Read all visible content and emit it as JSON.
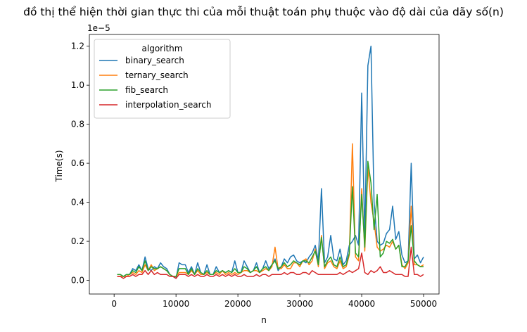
{
  "chart_data": {
    "type": "line",
    "title": "đồ thị thể hiện thời gian thực thi của mỗi thuật toán phụ thuộc vào độ dài của dãy số(n)",
    "xlabel": "n",
    "ylabel": "Time(s)",
    "y_offset_label": "1e−5",
    "y_unit_scale": 1e-05,
    "xlim": [
      -4000,
      52500
    ],
    "ylim": [
      -0.07,
      1.26
    ],
    "x_ticks": [
      0,
      10000,
      20000,
      30000,
      40000,
      50000
    ],
    "x_tick_labels": [
      "0",
      "10000",
      "20000",
      "30000",
      "40000",
      "50000"
    ],
    "y_ticks": [
      0.0,
      0.2,
      0.4,
      0.6,
      0.8,
      1.0,
      1.2
    ],
    "y_tick_labels": [
      "0.0",
      "0.2",
      "0.4",
      "0.6",
      "0.8",
      "1.0",
      "1.2"
    ],
    "grid": false,
    "legend": {
      "title": "algorithm",
      "placement": "top-left"
    },
    "x": [
      500,
      1000,
      1500,
      2000,
      2500,
      3000,
      3500,
      4000,
      4500,
      5000,
      5500,
      6000,
      6500,
      7000,
      7500,
      8000,
      8500,
      9000,
      9500,
      10000,
      10500,
      11000,
      11500,
      12000,
      12500,
      13000,
      13500,
      14000,
      14500,
      15000,
      15500,
      16000,
      16500,
      17000,
      17500,
      18000,
      18500,
      19000,
      19500,
      20000,
      20500,
      21000,
      21500,
      22000,
      22500,
      23000,
      23500,
      24000,
      24500,
      25000,
      25500,
      26000,
      26500,
      27000,
      27500,
      28000,
      28500,
      29000,
      29500,
      30000,
      30500,
      31000,
      31500,
      32000,
      32500,
      33000,
      33500,
      34000,
      34500,
      35000,
      35500,
      36000,
      36500,
      37000,
      37500,
      38000,
      38500,
      39000,
      39500,
      40000,
      40500,
      41000,
      41500,
      42000,
      42500,
      43000,
      43500,
      44000,
      44500,
      45000,
      45500,
      46000,
      46500,
      47000,
      47500,
      48000,
      48500,
      49000,
      49500,
      50000
    ],
    "series": [
      {
        "name": "binary_search",
        "color": "#1f77b4",
        "values": [
          0.03,
          0.03,
          0.02,
          0.03,
          0.03,
          0.06,
          0.05,
          0.08,
          0.05,
          0.12,
          0.06,
          0.05,
          0.07,
          0.06,
          0.09,
          0.07,
          0.06,
          0.03,
          0.02,
          0.01,
          0.09,
          0.08,
          0.08,
          0.04,
          0.07,
          0.03,
          0.09,
          0.04,
          0.03,
          0.08,
          0.03,
          0.03,
          0.07,
          0.04,
          0.05,
          0.04,
          0.05,
          0.04,
          0.1,
          0.04,
          0.04,
          0.1,
          0.07,
          0.04,
          0.05,
          0.09,
          0.04,
          0.06,
          0.1,
          0.06,
          0.08,
          0.11,
          0.05,
          0.07,
          0.11,
          0.09,
          0.12,
          0.13,
          0.1,
          0.09,
          0.1,
          0.09,
          0.12,
          0.14,
          0.18,
          0.1,
          0.47,
          0.09,
          0.12,
          0.23,
          0.11,
          0.1,
          0.16,
          0.08,
          0.1,
          0.18,
          0.2,
          0.23,
          0.18,
          0.96,
          0.22,
          1.1,
          1.2,
          0.4,
          0.2,
          0.18,
          0.19,
          0.24,
          0.26,
          0.38,
          0.21,
          0.25,
          0.13,
          0.09,
          0.1,
          0.6,
          0.11,
          0.13,
          0.09,
          0.12
        ]
      },
      {
        "name": "ternary_search",
        "color": "#ff7f0e",
        "values": [
          0.02,
          0.02,
          0.02,
          0.02,
          0.03,
          0.04,
          0.03,
          0.05,
          0.04,
          0.08,
          0.05,
          0.08,
          0.05,
          0.06,
          0.07,
          0.06,
          0.05,
          0.03,
          0.02,
          0.02,
          0.04,
          0.04,
          0.04,
          0.03,
          0.05,
          0.03,
          0.05,
          0.03,
          0.03,
          0.04,
          0.03,
          0.03,
          0.04,
          0.03,
          0.05,
          0.03,
          0.04,
          0.03,
          0.04,
          0.03,
          0.04,
          0.05,
          0.05,
          0.04,
          0.05,
          0.05,
          0.04,
          0.05,
          0.06,
          0.05,
          0.07,
          0.17,
          0.06,
          0.06,
          0.08,
          0.06,
          0.06,
          0.09,
          0.09,
          0.07,
          0.1,
          0.11,
          0.08,
          0.1,
          0.16,
          0.07,
          0.23,
          0.06,
          0.09,
          0.1,
          0.07,
          0.06,
          0.1,
          0.06,
          0.07,
          0.13,
          0.7,
          0.12,
          0.1,
          0.47,
          0.15,
          0.58,
          0.4,
          0.3,
          0.17,
          0.15,
          0.16,
          0.18,
          0.17,
          0.2,
          0.16,
          0.18,
          0.08,
          0.06,
          0.09,
          0.38,
          0.08,
          0.08,
          0.07,
          0.08
        ]
      },
      {
        "name": "fib_search",
        "color": "#2ca02c",
        "values": [
          0.03,
          0.03,
          0.02,
          0.03,
          0.03,
          0.05,
          0.04,
          0.07,
          0.05,
          0.1,
          0.05,
          0.07,
          0.06,
          0.06,
          0.07,
          0.06,
          0.05,
          0.03,
          0.02,
          0.02,
          0.06,
          0.06,
          0.06,
          0.03,
          0.06,
          0.03,
          0.06,
          0.04,
          0.03,
          0.05,
          0.03,
          0.03,
          0.05,
          0.04,
          0.05,
          0.04,
          0.05,
          0.04,
          0.06,
          0.04,
          0.04,
          0.07,
          0.06,
          0.04,
          0.05,
          0.07,
          0.04,
          0.06,
          0.07,
          0.05,
          0.08,
          0.1,
          0.06,
          0.07,
          0.09,
          0.07,
          0.08,
          0.1,
          0.09,
          0.08,
          0.1,
          0.1,
          0.09,
          0.12,
          0.15,
          0.08,
          0.22,
          0.07,
          0.1,
          0.12,
          0.08,
          0.07,
          0.12,
          0.07,
          0.08,
          0.14,
          0.48,
          0.14,
          0.12,
          0.44,
          0.17,
          0.61,
          0.5,
          0.26,
          0.44,
          0.12,
          0.14,
          0.2,
          0.19,
          0.21,
          0.16,
          0.18,
          0.07,
          0.07,
          0.1,
          0.28,
          0.1,
          0.08,
          0.07,
          0.07
        ]
      },
      {
        "name": "interpolation_search",
        "color": "#d62728",
        "values": [
          0.02,
          0.02,
          0.01,
          0.02,
          0.02,
          0.03,
          0.02,
          0.03,
          0.03,
          0.05,
          0.03,
          0.05,
          0.03,
          0.04,
          0.03,
          0.03,
          0.03,
          0.02,
          0.02,
          0.01,
          0.03,
          0.03,
          0.03,
          0.02,
          0.03,
          0.02,
          0.03,
          0.02,
          0.02,
          0.03,
          0.02,
          0.02,
          0.03,
          0.02,
          0.03,
          0.02,
          0.03,
          0.02,
          0.03,
          0.02,
          0.02,
          0.03,
          0.02,
          0.02,
          0.02,
          0.03,
          0.02,
          0.03,
          0.03,
          0.02,
          0.03,
          0.03,
          0.03,
          0.03,
          0.04,
          0.03,
          0.04,
          0.04,
          0.03,
          0.03,
          0.04,
          0.04,
          0.03,
          0.05,
          0.04,
          0.03,
          0.03,
          0.03,
          0.03,
          0.03,
          0.03,
          0.03,
          0.04,
          0.03,
          0.04,
          0.05,
          0.04,
          0.05,
          0.06,
          0.14,
          0.04,
          0.03,
          0.05,
          0.04,
          0.05,
          0.07,
          0.04,
          0.04,
          0.05,
          0.04,
          0.03,
          0.03,
          0.03,
          0.02,
          0.02,
          0.17,
          0.03,
          0.03,
          0.02,
          0.03
        ]
      }
    ]
  }
}
